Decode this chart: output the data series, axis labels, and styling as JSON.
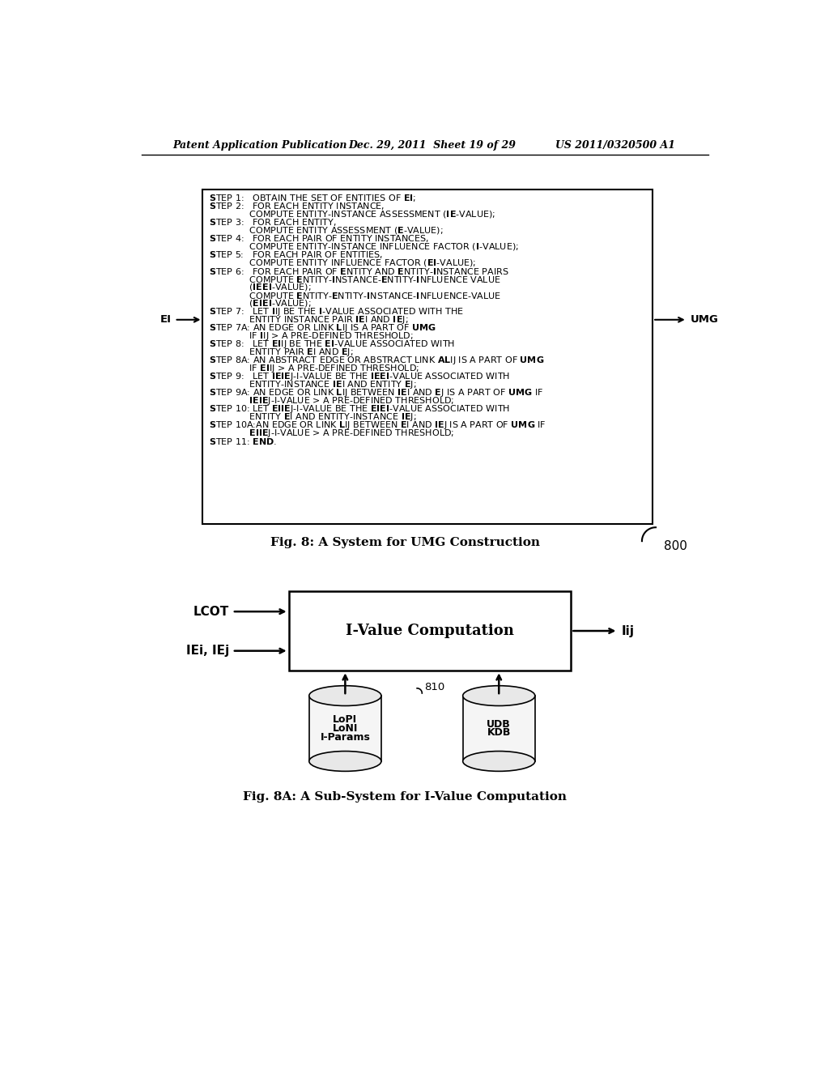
{
  "header_left": "Patent Application Publication",
  "header_mid": "Dec. 29, 2011  Sheet 19 of 29",
  "header_right": "US 2011/0320500 A1",
  "fig8_caption": "Fig. 8: A System for UMG Construction",
  "fig8a_caption": "Fig. 8A: A Sub-System for I-Value Computation",
  "label_800": "800",
  "label_810": "810",
  "background_color": "#ffffff",
  "box_color": "#ffffff",
  "border_color": "#000000",
  "text_color": "#000000"
}
